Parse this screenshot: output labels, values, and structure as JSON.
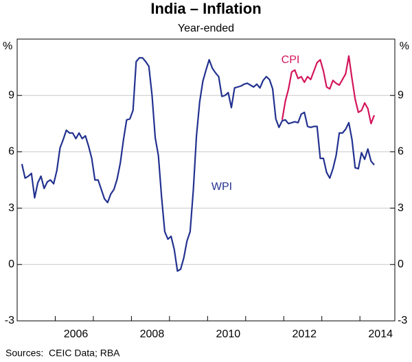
{
  "chart_data": {
    "type": "line",
    "title": "India – Inflation",
    "subtitle": "Year-ended",
    "y_label": "%",
    "source": "Sources:  CEIC Data; RBA",
    "ylim": [
      -3,
      12
    ],
    "yticks": [
      -3,
      0,
      3,
      6,
      9
    ],
    "grid": true,
    "categories": [
      null,
      null,
      null,
      null,
      null,
      null,
      null,
      null,
      null,
      null,
      null,
      null,
      null,
      null,
      null,
      null,
      null,
      null,
      "2006",
      null,
      null,
      null,
      null,
      null,
      null,
      null,
      null,
      null,
      null,
      null,
      null,
      null,
      null,
      null,
      null,
      null,
      null,
      null,
      null,
      null,
      null,
      null,
      "2008",
      null,
      null,
      null,
      null,
      null,
      null,
      null,
      null,
      null,
      null,
      null,
      null,
      null,
      null,
      null,
      null,
      null,
      null,
      null,
      null,
      null,
      null,
      null,
      "2010",
      null,
      null,
      null,
      null,
      null,
      null,
      null,
      null,
      null,
      null,
      null,
      null,
      null,
      null,
      null,
      null,
      null,
      null,
      null,
      null,
      null,
      null,
      null,
      "2012",
      null,
      null,
      null,
      null,
      null,
      null,
      null,
      null,
      null,
      null,
      null,
      null,
      null,
      null,
      null,
      null,
      null,
      null,
      null,
      null,
      null,
      null,
      null,
      "2014",
      null,
      null,
      null,
      null
    ],
    "series": [
      {
        "name": "WPI",
        "color": "#22318f",
        "values": [
          null,
          5.35,
          4.6,
          4.7,
          4.85,
          3.55,
          4.35,
          4.7,
          4.05,
          4.4,
          4.5,
          4.3,
          5.0,
          6.2,
          6.65,
          7.15,
          7.0,
          7.0,
          6.7,
          7.0,
          6.7,
          6.85,
          6.3,
          5.65,
          4.5,
          4.5,
          4.0,
          3.5,
          3.3,
          3.75,
          4.0,
          4.55,
          5.4,
          6.65,
          7.7,
          7.75,
          8.2,
          10.8,
          11.0,
          11.0,
          10.8,
          10.55,
          9.0,
          6.75,
          5.8,
          3.6,
          1.75,
          1.35,
          1.5,
          0.8,
          -0.35,
          -0.25,
          0.35,
          1.25,
          1.75,
          3.95,
          6.85,
          8.65,
          9.75,
          10.35,
          10.9,
          10.45,
          10.2,
          10.0,
          8.95,
          9.0,
          9.15,
          8.35,
          9.4,
          9.45,
          9.5,
          9.6,
          9.65,
          9.55,
          9.45,
          9.6,
          9.4,
          9.8,
          10.0,
          9.85,
          9.35,
          7.75,
          7.3,
          7.65,
          7.7,
          7.5,
          7.55,
          7.6,
          7.55,
          8.0,
          8.1,
          7.35,
          7.3,
          7.35,
          7.35,
          5.65,
          5.65,
          4.9,
          4.6,
          5.1,
          5.8,
          7.0,
          7.0,
          7.2,
          7.55,
          6.65,
          5.15,
          5.1,
          5.95,
          5.6,
          6.15,
          5.5,
          5.3,
          null,
          null,
          null,
          null,
          null,
          null
        ]
      },
      {
        "name": "CPI",
        "color": "#d4145a",
        "values": [
          null,
          null,
          null,
          null,
          null,
          null,
          null,
          null,
          null,
          null,
          null,
          null,
          null,
          null,
          null,
          null,
          null,
          null,
          null,
          null,
          null,
          null,
          null,
          null,
          null,
          null,
          null,
          null,
          null,
          null,
          null,
          null,
          null,
          null,
          null,
          null,
          null,
          null,
          null,
          null,
          null,
          null,
          null,
          null,
          null,
          null,
          null,
          null,
          null,
          null,
          null,
          null,
          null,
          null,
          null,
          null,
          null,
          null,
          null,
          null,
          null,
          null,
          null,
          null,
          null,
          null,
          null,
          null,
          null,
          null,
          null,
          null,
          null,
          null,
          null,
          null,
          null,
          null,
          null,
          null,
          null,
          null,
          null,
          7.7,
          8.7,
          9.35,
          10.25,
          10.35,
          9.9,
          10.0,
          9.7,
          10.0,
          9.85,
          10.3,
          10.75,
          10.9,
          10.3,
          9.45,
          9.35,
          9.8,
          9.65,
          9.55,
          9.85,
          10.15,
          11.1,
          9.9,
          8.8,
          8.1,
          8.2,
          8.6,
          8.3,
          7.5,
          7.95,
          null,
          null,
          null,
          null,
          null,
          null
        ]
      }
    ]
  }
}
